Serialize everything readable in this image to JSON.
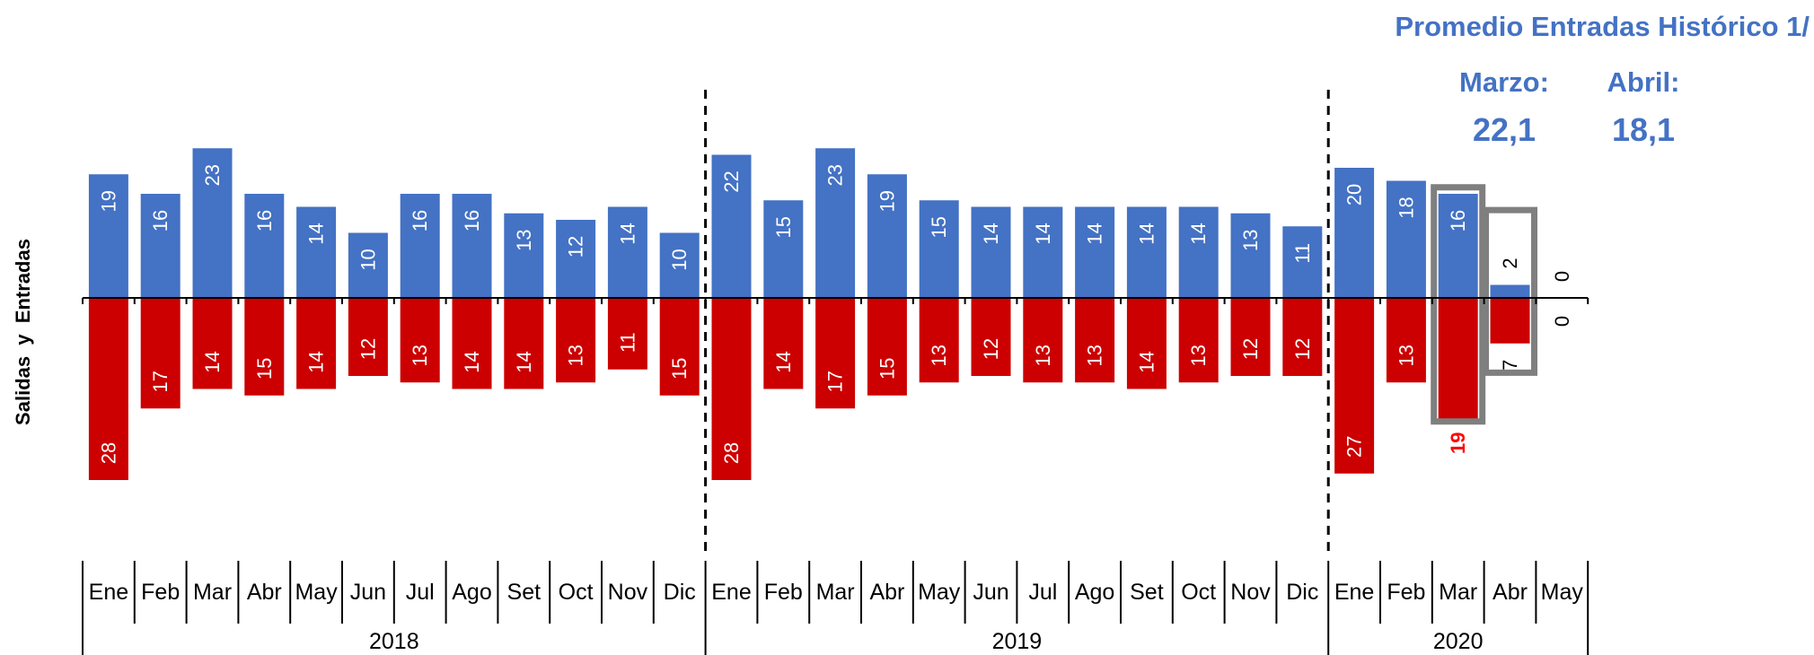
{
  "chart_data": {
    "type": "bar",
    "ylabel": "Salidas  y  Entradas",
    "months": [
      "Ene",
      "Feb",
      "Mar",
      "Abr",
      "May",
      "Jun",
      "Jul",
      "Ago",
      "Set",
      "Oct",
      "Nov",
      "Dic",
      "Ene",
      "Feb",
      "Mar",
      "Abr",
      "May",
      "Jun",
      "Jul",
      "Ago",
      "Set",
      "Oct",
      "Nov",
      "Dic",
      "Ene",
      "Feb",
      "Mar",
      "Abr",
      "May"
    ],
    "years": [
      {
        "label": "2018",
        "start": 0,
        "end": 11
      },
      {
        "label": "2019",
        "start": 12,
        "end": 23
      },
      {
        "label": "2020",
        "start": 24,
        "end": 28
      }
    ],
    "series": [
      {
        "name": "Entradas",
        "color": "#4472C4",
        "values": [
          19,
          16,
          23,
          16,
          14,
          10,
          16,
          16,
          13,
          12,
          14,
          10,
          22,
          15,
          23,
          19,
          15,
          14,
          14,
          14,
          14,
          14,
          13,
          11,
          20,
          18,
          16,
          2,
          0
        ]
      },
      {
        "name": "Salidas",
        "color": "#CC0000",
        "values": [
          28,
          17,
          14,
          15,
          14,
          12,
          13,
          14,
          14,
          13,
          11,
          15,
          28,
          14,
          17,
          15,
          13,
          12,
          13,
          13,
          14,
          13,
          12,
          12,
          27,
          13,
          19,
          7,
          0
        ]
      }
    ],
    "highlight_color": "#7F7F7F",
    "salidas_label_outside_color": "#FF0000"
  },
  "annotation": {
    "title": "Promedio Entradas Histórico 1/",
    "items": [
      {
        "label": "Marzo:",
        "value": "22,1"
      },
      {
        "label": "Abril:",
        "value": "18,1"
      }
    ]
  }
}
